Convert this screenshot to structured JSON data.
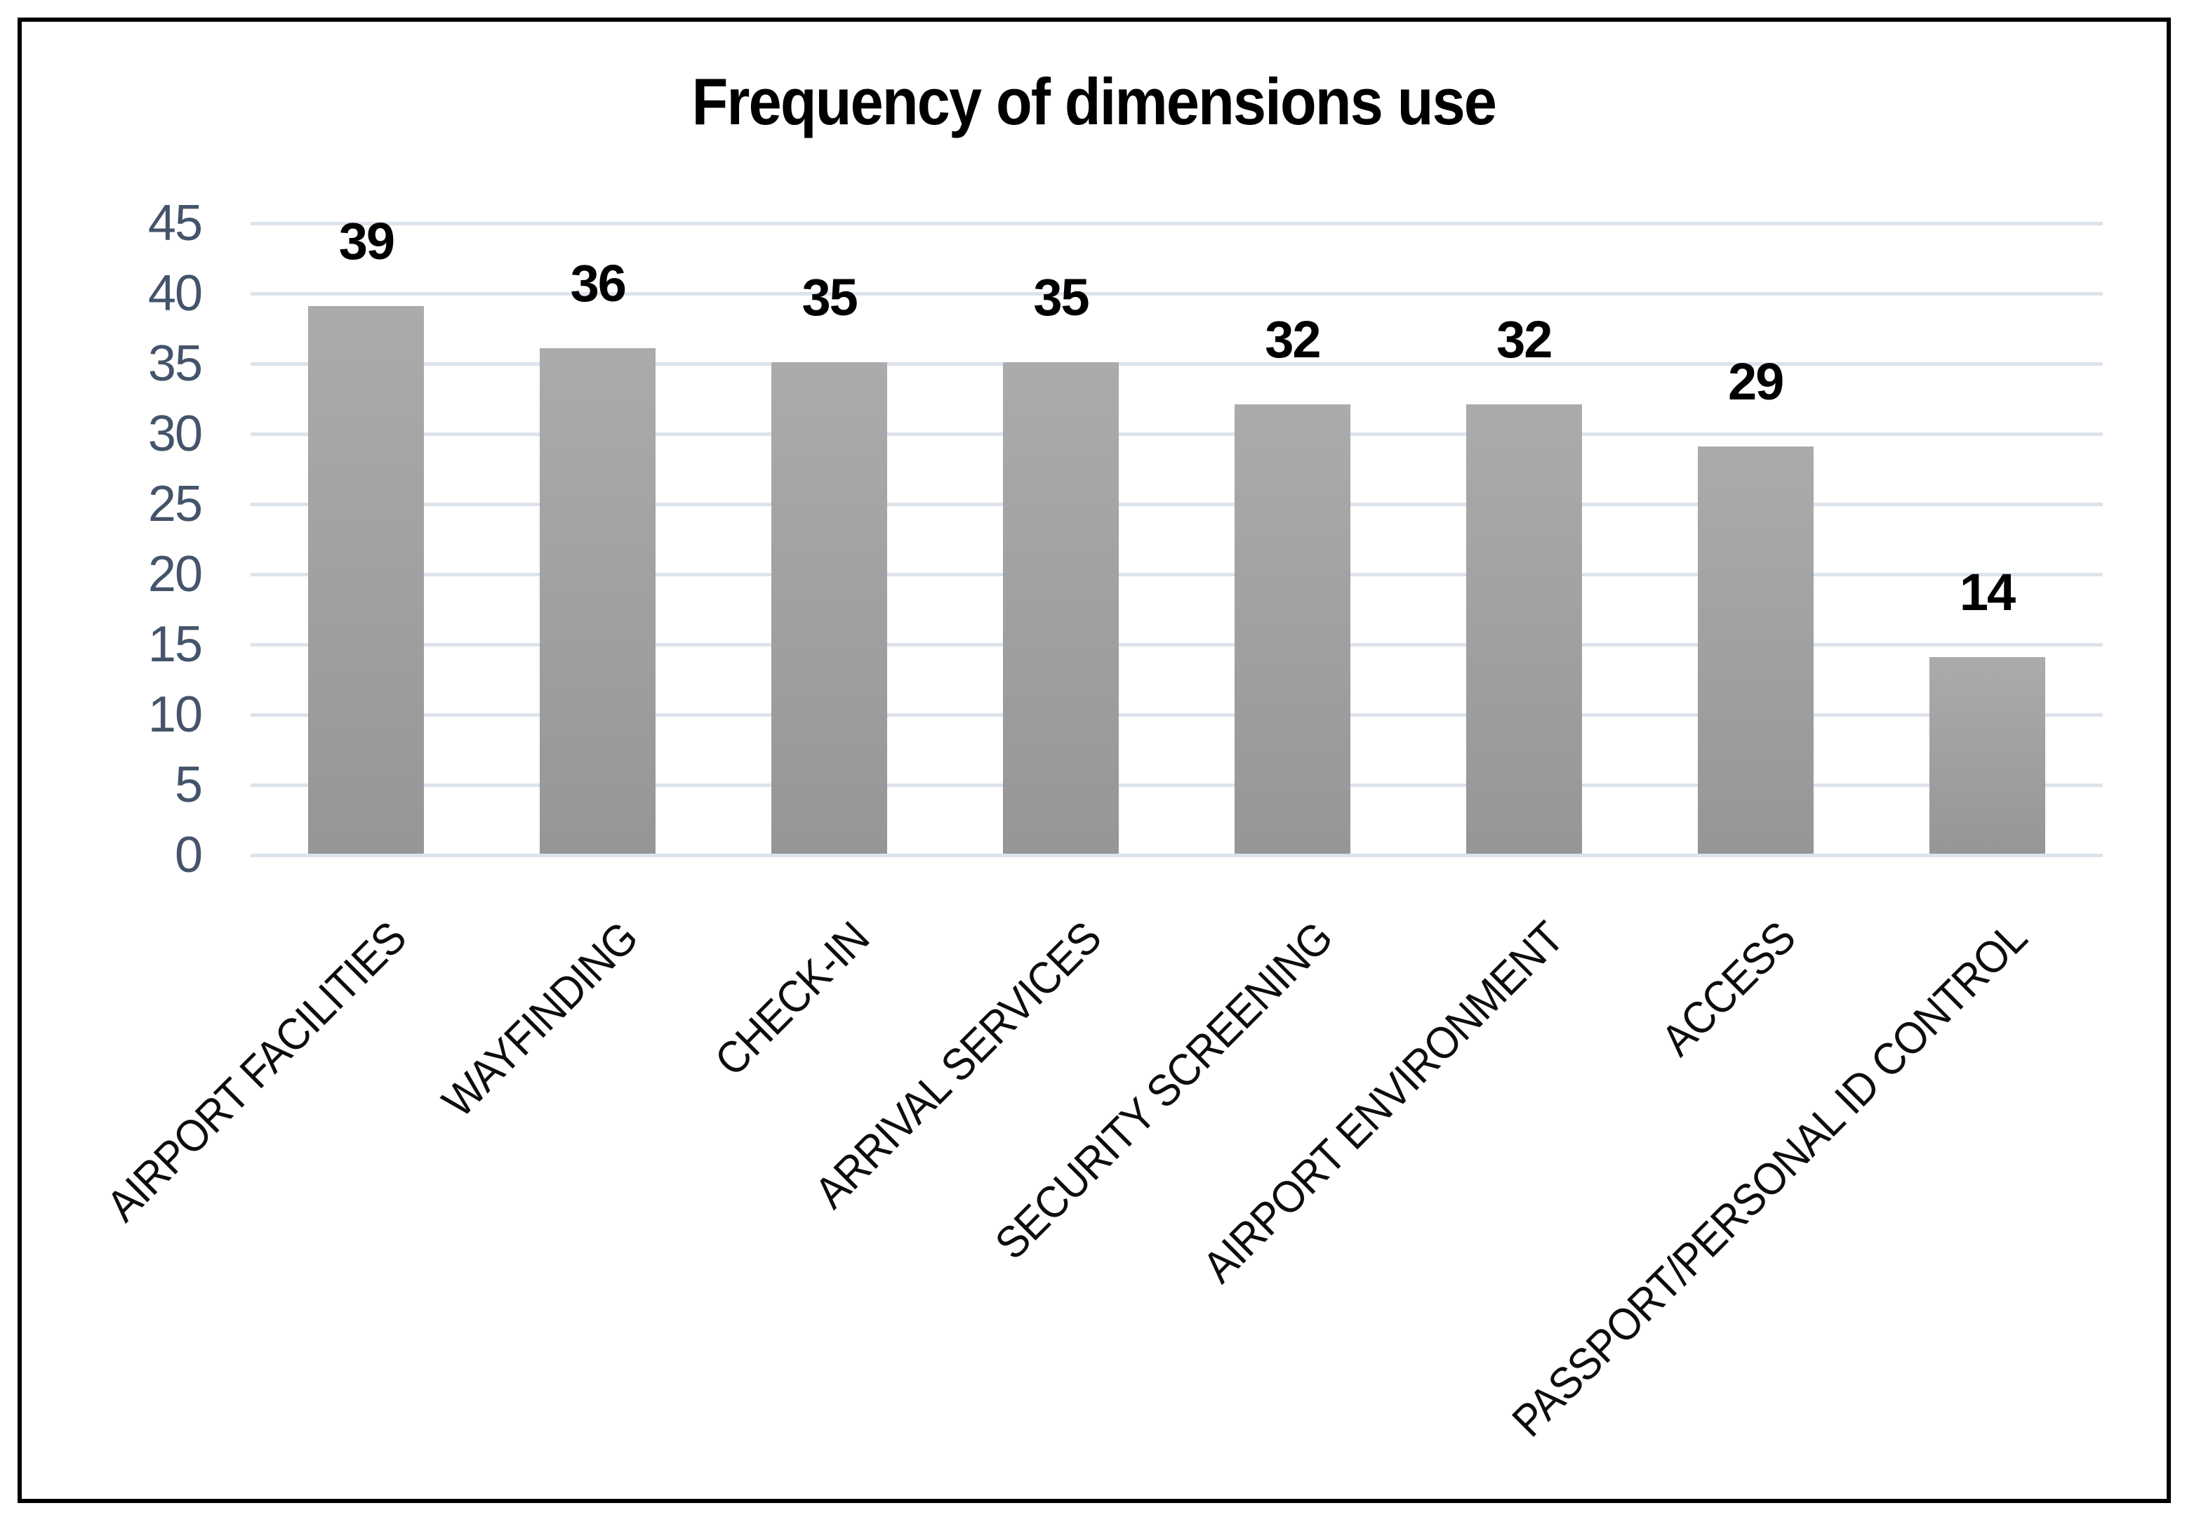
{
  "chart_data": {
    "type": "bar",
    "title": "Frequency of dimensions use",
    "categories": [
      "AIRPORT FACILITIES",
      "WAYFINDING",
      "CHECK-IN",
      "ARRIVAL SERVICES",
      "SECURITY SCREENING",
      "AIRPORT ENVIRONMENT",
      "ACCESS",
      "PASSPORT/PERSONAL ID CONTROL"
    ],
    "values": [
      39,
      36,
      35,
      35,
      32,
      32,
      29,
      14
    ],
    "data_labels": [
      39,
      36,
      35,
      35,
      32,
      32,
      29,
      14
    ],
    "xlabel": "",
    "ylabel": "",
    "ylim": [
      0,
      45
    ],
    "ytick_step": 5,
    "yticks": [
      0,
      5,
      10,
      15,
      20,
      25,
      30,
      35,
      40,
      45
    ],
    "grid": "horizontal",
    "legend": "none",
    "category_label_rotation_deg": 45
  },
  "colors": {
    "background": "#ffffff",
    "border": "#000000",
    "title": "#000000",
    "bar_gradient_top": "#ababab",
    "bar_gradient_bottom": "#969696",
    "gridline": "#dde3ec",
    "y_tick_label": "#44546a",
    "category_label": "#0d0d0d",
    "value_label": "#000000"
  }
}
